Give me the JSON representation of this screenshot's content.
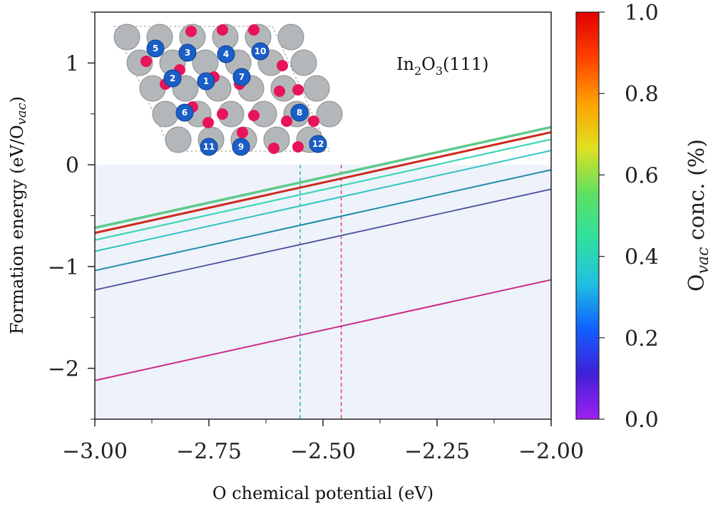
{
  "chart_data": {
    "type": "line",
    "xlabel": "O chemical potential (eV)",
    "ylabel_parts": [
      "Formation energy (eV/O",
      "vac",
      ")"
    ],
    "xlim": [
      -3.0,
      -2.0
    ],
    "ylim": [
      -2.5,
      1.5
    ],
    "x_ticks": [
      -3.0,
      -2.75,
      -2.5,
      -2.25,
      -2.0
    ],
    "x_tick_labels": [
      "−3.00",
      "−2.75",
      "−2.50",
      "−2.25",
      "−2.00"
    ],
    "y_ticks": [
      -2,
      -1,
      0,
      1
    ],
    "y_tick_labels": [
      "−2",
      "−1",
      "0",
      "1"
    ],
    "shaded_region": {
      "y_from": -2.5,
      "y_to": 0,
      "color": "#eef2fa"
    },
    "series": [
      {
        "x": [
          -3.0,
          -2.0
        ],
        "y": [
          -0.62,
          0.37
        ],
        "color": "#5ec98a",
        "width": 3.5
      },
      {
        "x": [
          -3.0,
          -2.0
        ],
        "y": [
          -0.67,
          0.32
        ],
        "color": "#cc2a1e",
        "width": 3
      },
      {
        "x": [
          -3.0,
          -2.0
        ],
        "y": [
          -0.74,
          0.25
        ],
        "color": "#3dd6b8",
        "width": 2.2
      },
      {
        "x": [
          -3.0,
          -2.0
        ],
        "y": [
          -0.85,
          0.14
        ],
        "color": "#30c4c4",
        "width": 2
      },
      {
        "x": [
          -3.0,
          -2.0
        ],
        "y": [
          -1.04,
          -0.05
        ],
        "color": "#1f8ca8",
        "width": 2
      },
      {
        "x": [
          -3.0,
          -2.0
        ],
        "y": [
          -1.23,
          -0.24
        ],
        "color": "#4a4fa0",
        "width": 1.8
      },
      {
        "x": [
          -3.0,
          -2.0
        ],
        "y": [
          -2.12,
          -1.13
        ],
        "color": "#cc2a8a",
        "width": 2
      }
    ],
    "vlines": [
      {
        "x": -2.55,
        "color": "#2ab3a8"
      },
      {
        "x": -2.46,
        "color": "#e0405a"
      }
    ],
    "colorbar": {
      "label_main": "O",
      "label_sub": "vac",
      "label_rest": " conc. (%)",
      "ticks": [
        0.0,
        0.2,
        0.4,
        0.6,
        0.8,
        1.0
      ],
      "tick_labels": [
        "0.0",
        "0.2",
        "0.4",
        "0.6",
        "0.8",
        "1.0"
      ],
      "colors": [
        "#a020f0",
        "#4020d8",
        "#1060ff",
        "#20c0e0",
        "#30e0a0",
        "#60e060",
        "#e0e020",
        "#ffa000",
        "#ff4000",
        "#e00000"
      ]
    },
    "inset": {
      "title_parts": [
        "In",
        "2",
        "O",
        "3",
        "(111)"
      ],
      "atom_numbers": [
        "5",
        "3",
        "4",
        "10",
        "2",
        "1",
        "7",
        "6",
        "8",
        "11",
        "9",
        "12"
      ]
    }
  }
}
